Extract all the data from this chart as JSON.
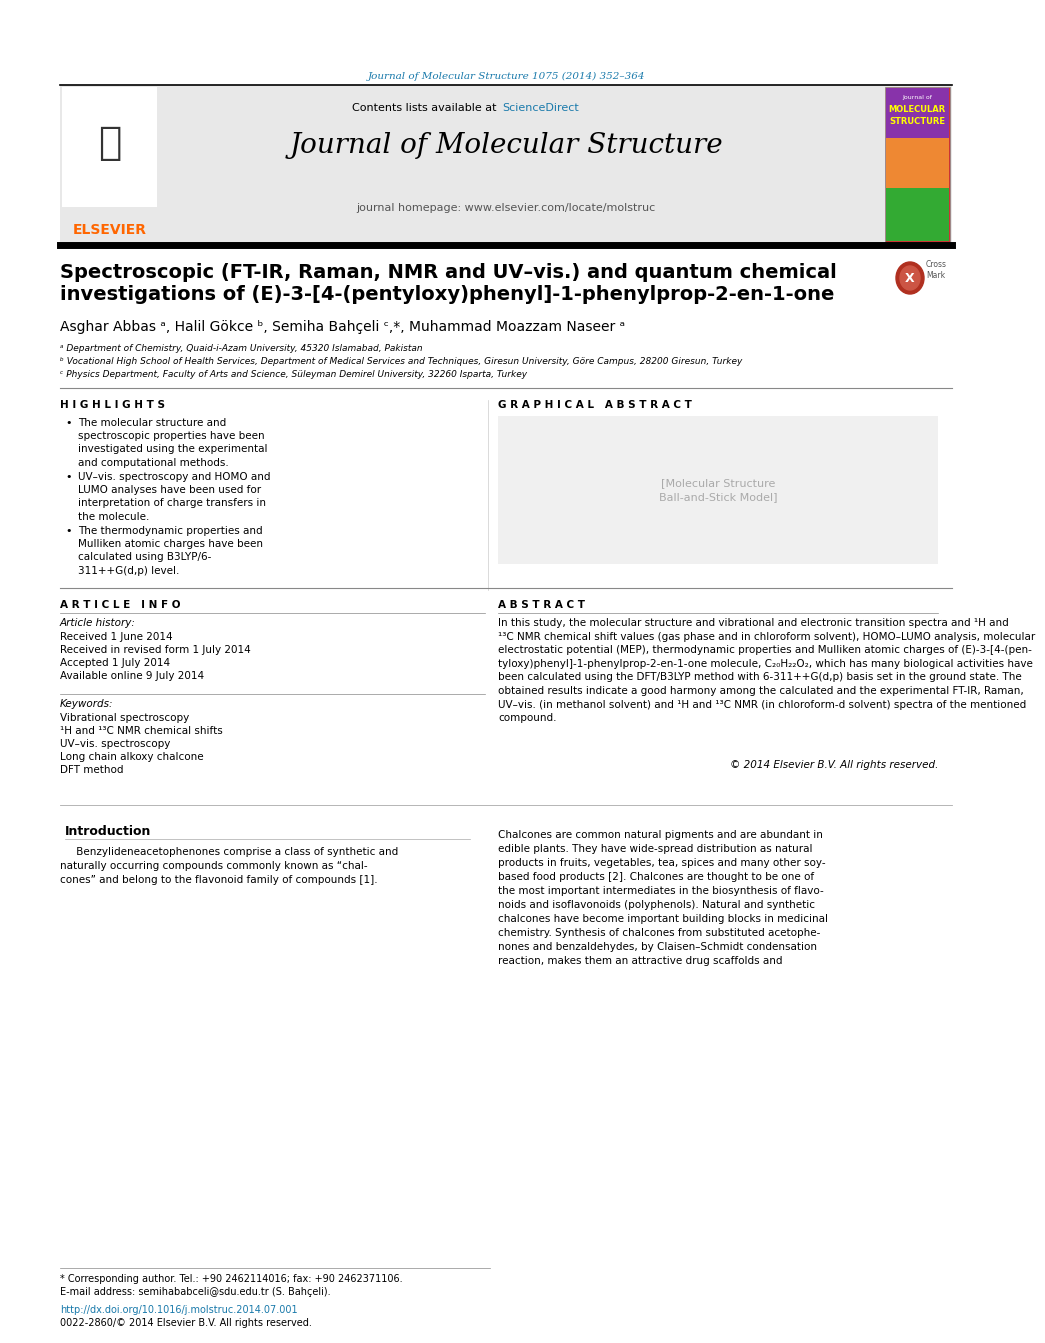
{
  "journal_ref": "Journal of Molecular Structure 1075 (2014) 352–364",
  "journal_ref_color": "#1a7aab",
  "header_bg": "#e8e8e8",
  "journal_title": "Journal of Molecular Structure",
  "journal_homepage": "journal homepage: www.elsevier.com/locate/molstruc",
  "elsevier_color": "#ff6600",
  "sciencedirect_color": "#1a7aab",
  "paper_title_line1": "Spectroscopic (FT-IR, Raman, NMR and UV–vis.) and quantum chemical",
  "paper_title_line2": "investigations of (E)-3-[4-(pentyloxy)phenyl]-1-phenylprop-2-en-1-one",
  "authors": "Asghar Abbas ᵃ, Halil Gökce ᵇ, Semiha Bahçeli ᶜ,*, Muhammad Moazzam Naseer ᵃ",
  "affil1": "ᵃ Department of Chemistry, Quaid-i-Azam University, 45320 Islamabad, Pakistan",
  "affil2": "ᵇ Vocational High School of Health Services, Department of Medical Services and Techniques, Giresun University, Göre Campus, 28200 Giresun, Turkey",
  "affil3": "ᶜ Physics Department, Faculty of Arts and Science, Süleyman Demirel University, 32260 Isparta, Turkey",
  "highlights_title": "H I G H L I G H T S",
  "highlight1": "The molecular structure and\nspectroscopic properties have been\ninvestigated using the experimental\nand computational methods.",
  "highlight2": "UV–vis. spectroscopy and HOMO and\nLUMO analyses have been used for\ninterpretation of charge transfers in\nthe molecule.",
  "highlight3": "The thermodynamic properties and\nMulliken atomic charges have been\ncalculated using B3LYP/6-\n311++G(d,p) level.",
  "graphical_abstract_title": "G R A P H I C A L   A B S T R A C T",
  "article_info_title": "A R T I C L E   I N F O",
  "article_history_label": "Article history:",
  "received1": "Received 1 June 2014",
  "received2": "Received in revised form 1 July 2014",
  "accepted": "Accepted 1 July 2014",
  "available": "Available online 9 July 2014",
  "keywords_label": "Keywords:",
  "kw1": "Vibrational spectroscopy",
  "kw2": "¹H and ¹³C NMR chemical shifts",
  "kw3": "UV–vis. spectroscopy",
  "kw4": "Long chain alkoxy chalcone",
  "kw5": "DFT method",
  "abstract_title": "A B S T R A C T",
  "abstract_text": "In this study, the molecular structure and vibrational and electronic transition spectra and ¹H and\n¹³C NMR chemical shift values (gas phase and in chloroform solvent), HOMO–LUMO analysis, molecular\nelectrostatic potential (MEP), thermodynamic properties and Mulliken atomic charges of (E)-3-[4-(pen-\ntyloxy)phenyl]-1-phenylprop-2-en-1-one molecule, C₂₀H₂₂O₂, which has many biological activities have\nbeen calculated using the DFT/B3LYP method with 6-311++G(d,p) basis set in the ground state. The\nobtained results indicate a good harmony among the calculated and the experimental FT-IR, Raman,\nUV–vis. (in methanol solvent) and ¹H and ¹³C NMR (in chloroform-d solvent) spectra of the mentioned\ncompound.",
  "copyright": "© 2014 Elsevier B.V. All rights reserved.",
  "intro_title": "Introduction",
  "intro_col1": "     Benzylideneacetophenones comprise a class of synthetic and\nnaturally occurring compounds commonly known as “chal-\ncones” and belong to the flavonoid family of compounds [1].",
  "intro_col2": "Chalcones are common natural pigments and are abundant in\nedible plants. They have wide-spread distribution as natural\nproducts in fruits, vegetables, tea, spices and many other soy-\nbased food products [2]. Chalcones are thought to be one of\nthe most important intermediates in the biosynthesis of flavo-\nnoids and isoflavonoids (polyphenols). Natural and synthetic\nchalcones have become important building blocks in medicinal\nchemistry. Synthesis of chalcones from substituted acetophe-\nnones and benzaldehydes, by Claisen–Schmidt condensation\nreaction, makes them an attractive drug scaffolds and",
  "footnote_star": "* Corresponding author. Tel.: +90 2462114016; fax: +90 2462371106.",
  "footnote_email": "E-mail address: semihababceli@sdu.edu.tr (S. Bahçeli).",
  "footnote_doi": "http://dx.doi.org/10.1016/j.molstruc.2014.07.001",
  "footnote_issn": "0022-2860/© 2014 Elsevier B.V. All rights reserved.",
  "doi_color": "#1a7aab",
  "highlight_bullet": "•"
}
